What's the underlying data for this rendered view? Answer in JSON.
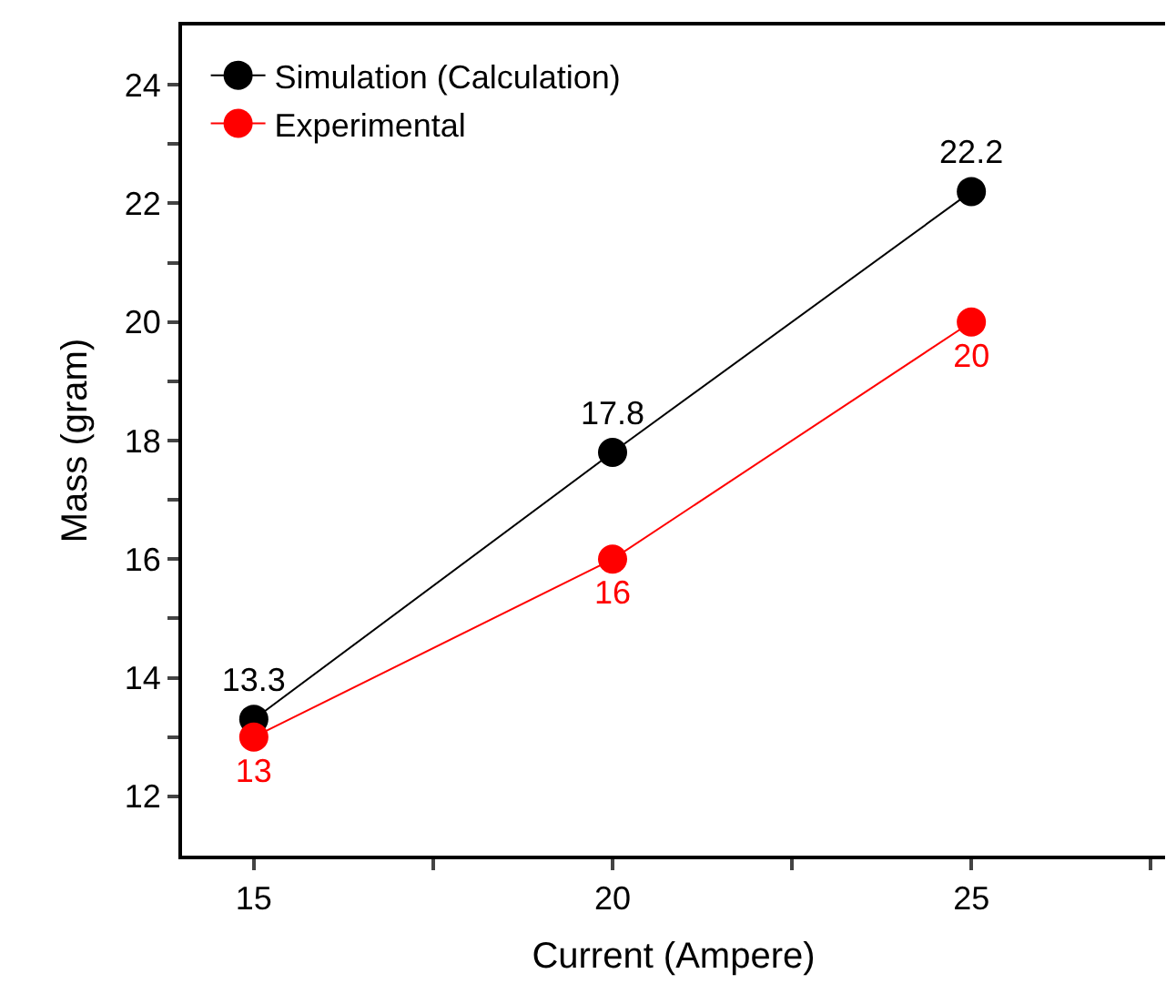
{
  "chart_data": {
    "type": "line",
    "xlabel": "Current (Ampere)",
    "ylabel": "Mass (gram)",
    "x": [
      15,
      20,
      25
    ],
    "series": [
      {
        "name": "Simulation (Calculation)",
        "color": "#000000",
        "marker": "circle",
        "values": [
          13.3,
          17.8,
          22.2
        ]
      },
      {
        "name": "Experimental",
        "color": "#ff0000",
        "marker": "circle",
        "values": [
          13,
          16,
          20
        ]
      }
    ],
    "data_labels": true,
    "xlim": [
      14,
      27.7
    ],
    "xticks": [
      15,
      {
        "value": 17.5,
        "label": null
      },
      20,
      {
        "value": 22.5,
        "label": null
      },
      25,
      {
        "value": 27.5,
        "label": null
      }
    ],
    "ylim": [
      11,
      25
    ],
    "yticks": [
      12,
      {
        "value": 13,
        "label": null
      },
      14,
      {
        "value": 15,
        "label": null
      },
      16,
      {
        "value": 17,
        "label": null
      },
      18,
      {
        "value": 19,
        "label": null
      },
      20,
      {
        "value": 21,
        "label": null
      },
      22,
      {
        "value": 23,
        "label": null
      },
      24
    ],
    "legend": "top left",
    "line_style": "solid"
  }
}
